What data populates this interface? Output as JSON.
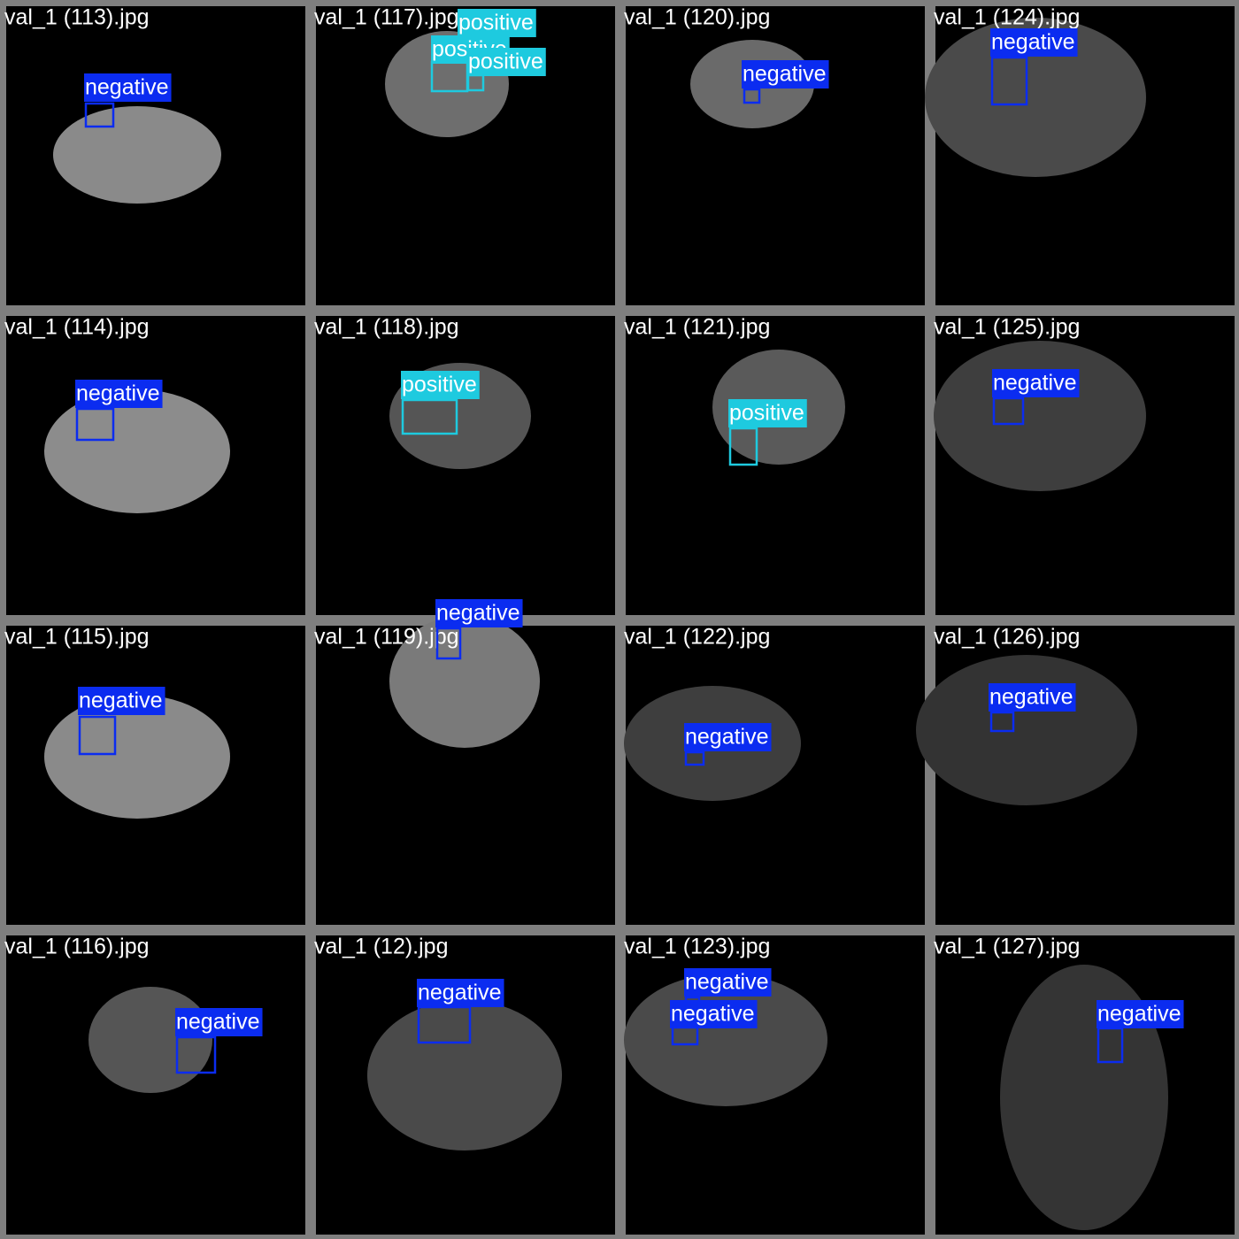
{
  "tiles": [
    {
      "filename": "val_1 (113).jpg",
      "detections": [
        {
          "label": "negative",
          "color": "#0b2cf0"
        }
      ]
    },
    {
      "filename": "val_1 (117).jpg",
      "detections": [
        {
          "label": "positive",
          "color": "#1ecadf"
        },
        {
          "label": "positive",
          "color": "#1ecadf"
        },
        {
          "label": "positive",
          "color": "#1ecadf"
        }
      ]
    },
    {
      "filename": "val_1 (120).jpg",
      "detections": [
        {
          "label": "negative",
          "color": "#0b2cf0"
        }
      ]
    },
    {
      "filename": "val_1 (124).jpg",
      "detections": [
        {
          "label": "negative",
          "color": "#0b2cf0"
        }
      ]
    },
    {
      "filename": "val_1 (114).jpg",
      "detections": [
        {
          "label": "negative",
          "color": "#0b2cf0"
        }
      ]
    },
    {
      "filename": "val_1 (118).jpg",
      "detections": [
        {
          "label": "positive",
          "color": "#1ecadf"
        }
      ]
    },
    {
      "filename": "val_1 (121).jpg",
      "detections": [
        {
          "label": "positive",
          "color": "#1ecadf"
        }
      ]
    },
    {
      "filename": "val_1 (125).jpg",
      "detections": [
        {
          "label": "negative",
          "color": "#0b2cf0"
        }
      ]
    },
    {
      "filename": "val_1 (115).jpg",
      "detections": [
        {
          "label": "negative",
          "color": "#0b2cf0"
        }
      ]
    },
    {
      "filename": "val_1 (119).jpg",
      "detections": [
        {
          "label": "negative",
          "color": "#0b2cf0"
        }
      ]
    },
    {
      "filename": "val_1 (122).jpg",
      "detections": [
        {
          "label": "negative",
          "color": "#0b2cf0"
        }
      ]
    },
    {
      "filename": "val_1 (126).jpg",
      "detections": [
        {
          "label": "negative",
          "color": "#0b2cf0"
        }
      ]
    },
    {
      "filename": "val_1 (116).jpg",
      "detections": [
        {
          "label": "negative",
          "color": "#0b2cf0"
        }
      ]
    },
    {
      "filename": "val_1 (12).jpg",
      "detections": [
        {
          "label": "negative",
          "color": "#0b2cf0"
        }
      ]
    },
    {
      "filename": "val_1 (123).jpg",
      "detections": [
        {
          "label": "negative",
          "color": "#0b2cf0"
        },
        {
          "label": "negative",
          "color": "#0b2cf0"
        }
      ]
    },
    {
      "filename": "val_1 (127).jpg",
      "detections": [
        {
          "label": "negative",
          "color": "#0b2cf0"
        }
      ]
    }
  ]
}
